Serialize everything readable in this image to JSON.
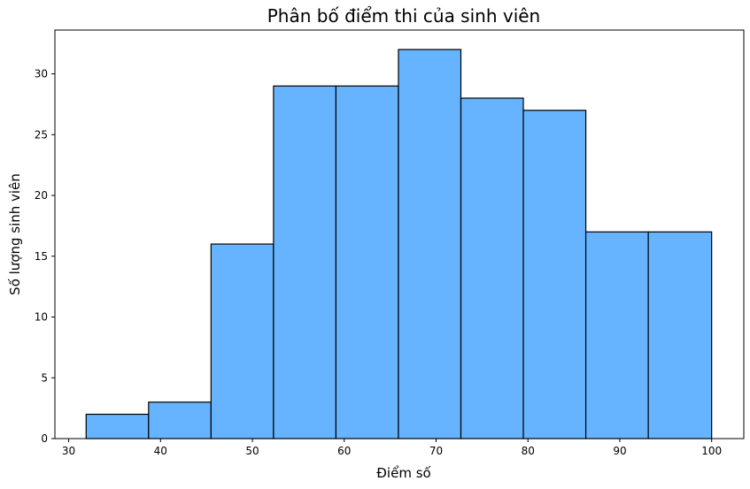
{
  "chart_data": {
    "type": "bar",
    "title": "Phân bố điểm thi của sinh viên",
    "xlabel": "Điểm số",
    "ylabel": "Số lượng sinh viên",
    "bin_edges": [
      31.9,
      38.7,
      45.5,
      52.3,
      59.1,
      65.9,
      72.7,
      79.5,
      86.3,
      93.1,
      100.0
    ],
    "values": [
      2,
      3,
      16,
      29,
      29,
      32,
      28,
      27,
      17,
      17
    ],
    "xlim": [
      28.5,
      103.5
    ],
    "ylim": [
      0,
      33.6
    ],
    "xticks": [
      30,
      40,
      50,
      60,
      70,
      80,
      90,
      100
    ],
    "yticks": [
      0,
      5,
      10,
      15,
      20,
      25,
      30
    ],
    "grid": false,
    "bar_color": "#66b3ff",
    "edge_color": "#000000"
  }
}
